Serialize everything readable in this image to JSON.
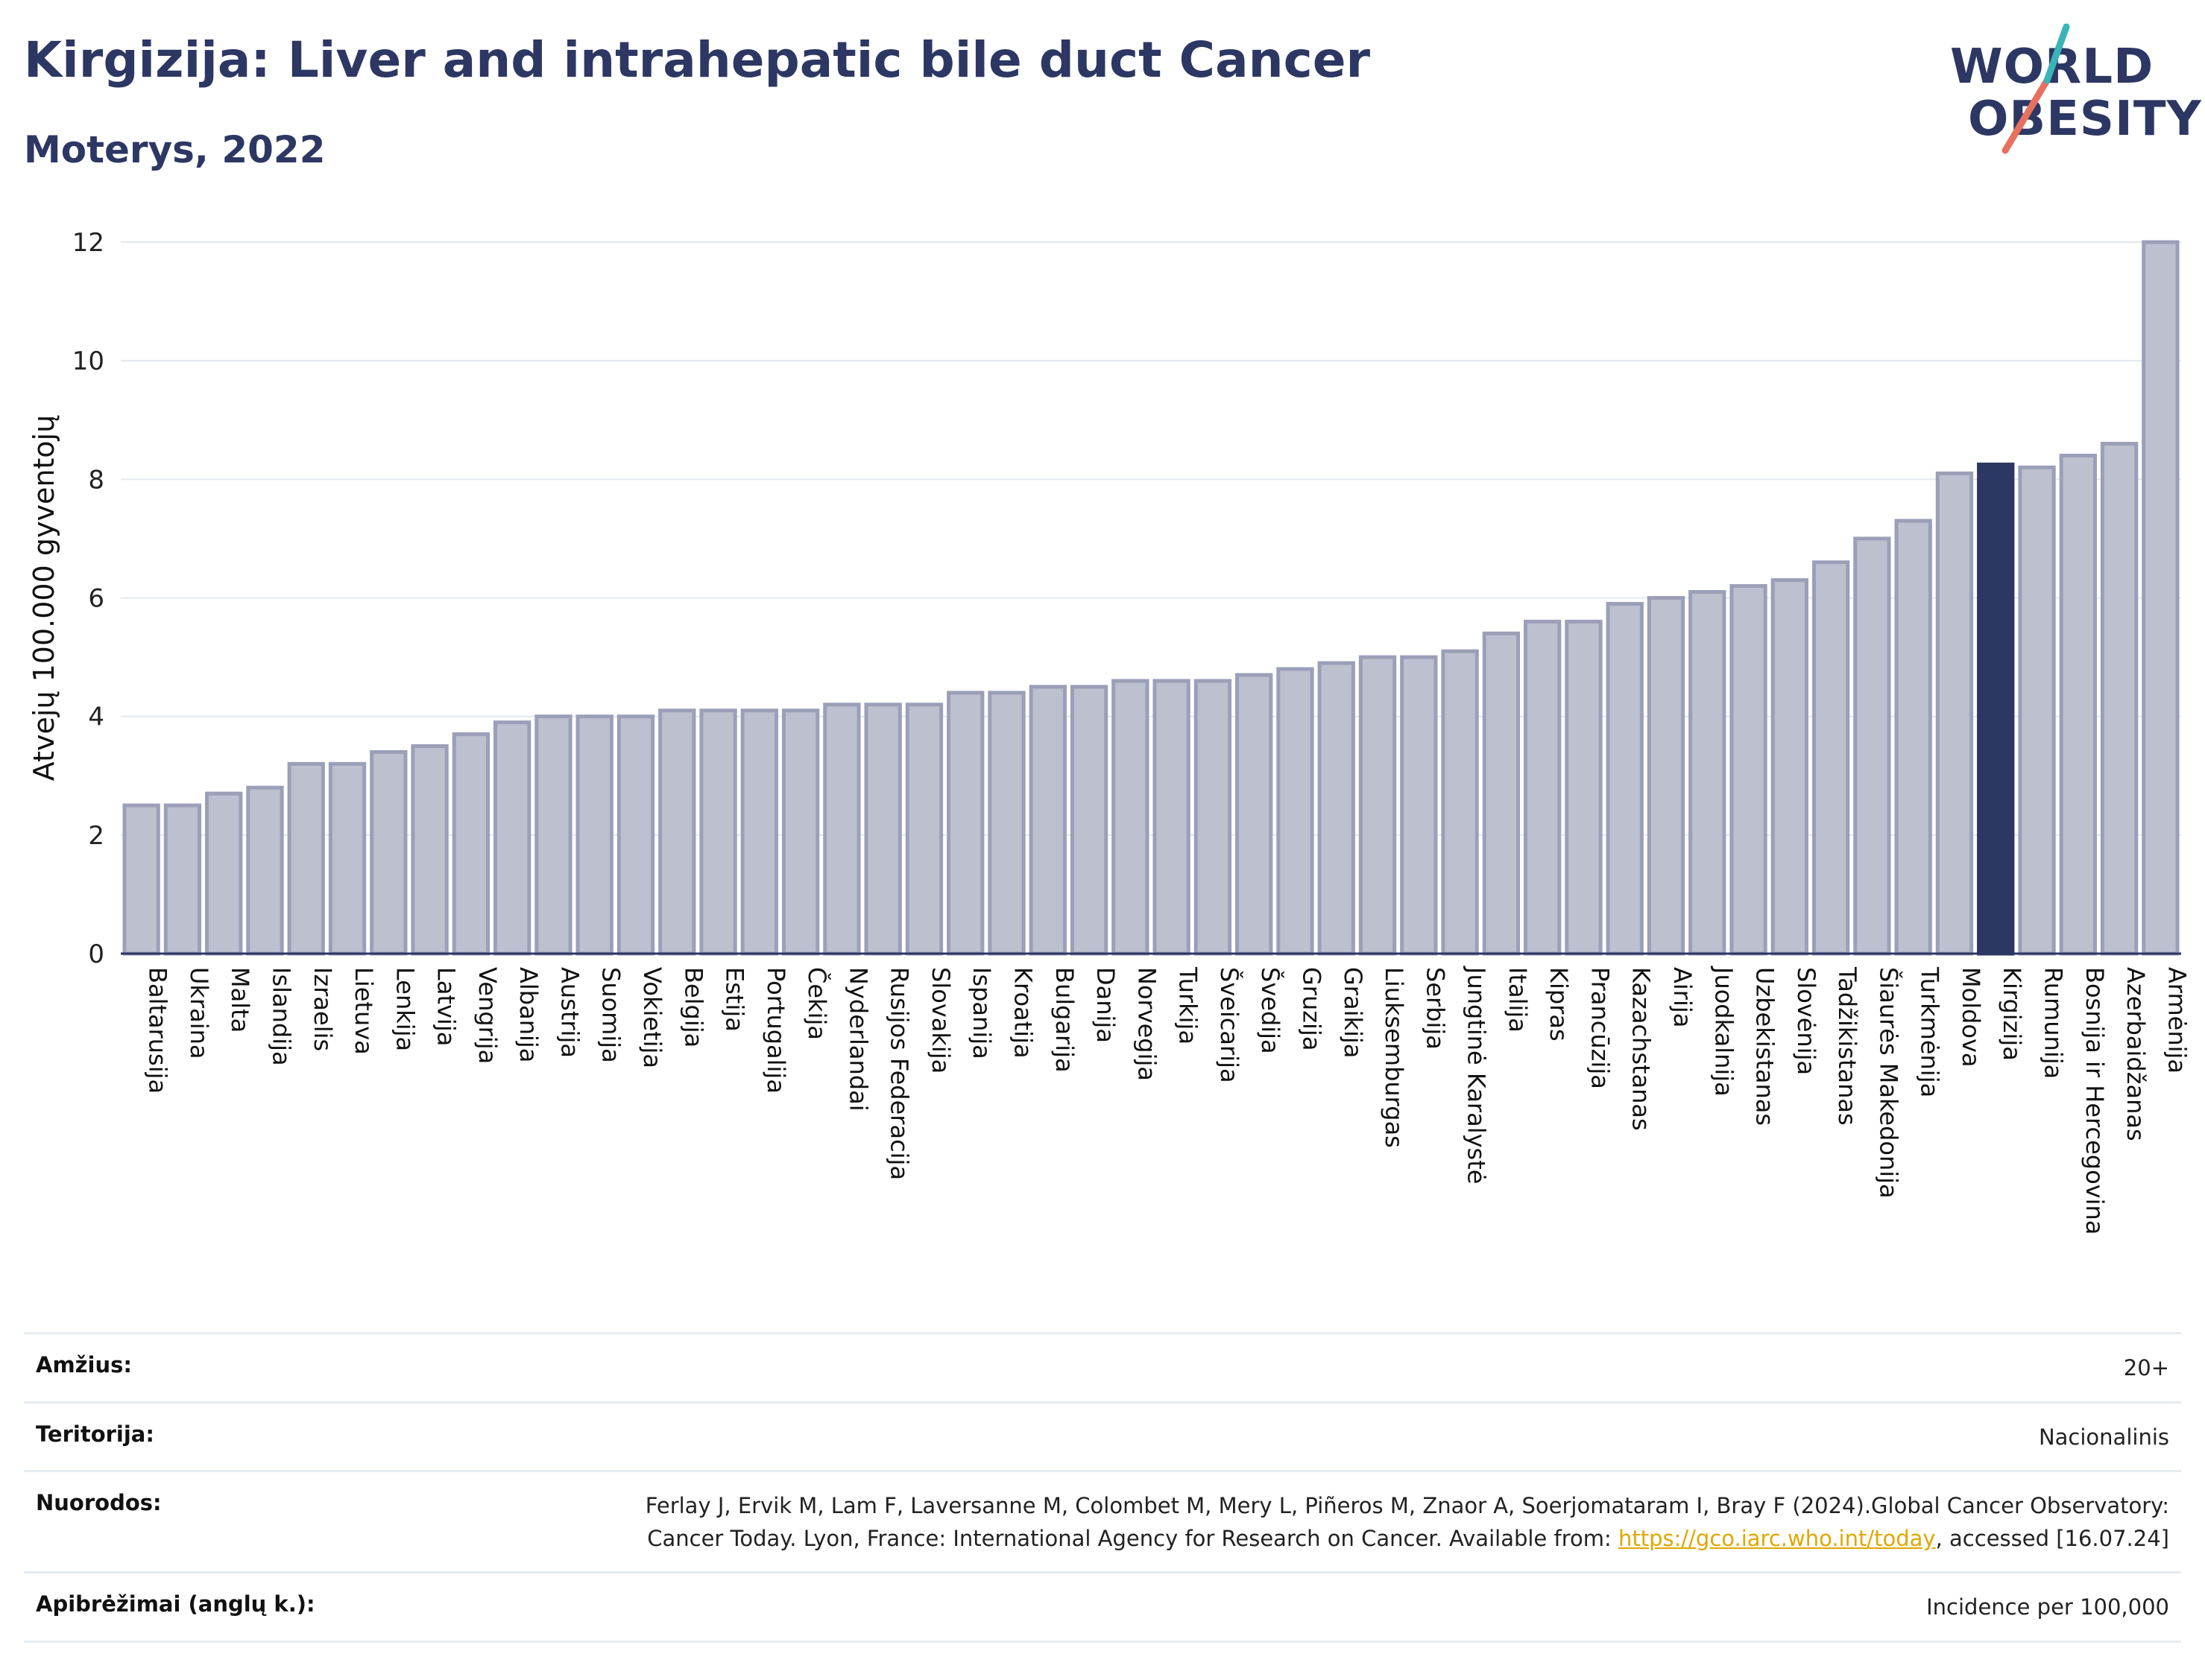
{
  "header": {
    "title": "Kirgizija: Liver and intrahepatic bile duct Cancer",
    "subtitle": "Moterys, 2022"
  },
  "logo": {
    "line1": "WORLD",
    "line2": "OBESITY"
  },
  "colors": {
    "bar": "#bcc0cf",
    "bar_border": "#9b9fb8",
    "highlight": "#2d3763",
    "grid": "#e3e8ef",
    "axis": "#2d3763"
  },
  "chart_data": {
    "type": "bar",
    "title": "",
    "xlabel": "",
    "ylabel": "Atvejų 100.000 gyventojų",
    "ylim": [
      0,
      12
    ],
    "yticks": [
      0,
      2,
      4,
      6,
      8,
      10,
      12
    ],
    "highlight": "Kirgizija",
    "categories": [
      "Baltarusija",
      "Ukraina",
      "Malta",
      "Islandija",
      "Izraelis",
      "Lietuva",
      "Lenkija",
      "Latvija",
      "Vengrija",
      "Albanija",
      "Austrija",
      "Suomija",
      "Vokietija",
      "Belgija",
      "Estija",
      "Portugalija",
      "Čekija",
      "Nyderlandai",
      "Rusijos Federacija",
      "Slovakija",
      "Ispanija",
      "Kroatija",
      "Bulgarija",
      "Danija",
      "Norvegija",
      "Turkija",
      "Šveicarija",
      "Švedija",
      "Gruzija",
      "Graikija",
      "Liuksemburgas",
      "Serbija",
      "Jungtinė Karalystė",
      "Italija",
      "Kipras",
      "Prancūzija",
      "Kazachstanas",
      "Airija",
      "Juodkalnija",
      "Uzbekistanas",
      "Slovėnija",
      "Tadžikistanas",
      "Šiaurės Makedonija",
      "Turkmėnija",
      "Moldova",
      "Kirgizija",
      "Rumunija",
      "Bosnija ir Hercegovina",
      "Azerbaidžanas",
      "Armėnija"
    ],
    "values": [
      2.5,
      2.5,
      2.7,
      2.8,
      3.2,
      3.2,
      3.4,
      3.5,
      3.7,
      3.9,
      4.0,
      4.0,
      4.0,
      4.1,
      4.1,
      4.1,
      4.1,
      4.2,
      4.2,
      4.2,
      4.4,
      4.4,
      4.5,
      4.5,
      4.6,
      4.6,
      4.6,
      4.7,
      4.8,
      4.9,
      5.0,
      5.0,
      5.1,
      5.4,
      5.6,
      5.6,
      5.9,
      6.0,
      6.1,
      6.2,
      6.3,
      6.6,
      7.0,
      7.3,
      8.1,
      8.25,
      8.2,
      8.4,
      8.6,
      12.0
    ]
  },
  "footer": {
    "rows": [
      {
        "key": "Amžius:",
        "value": "20+"
      },
      {
        "key": "Teritorija:",
        "value": "Nacionalinis"
      },
      {
        "key": "Nuorodos:",
        "value": "Ferlay J, Ervik M, Lam F, Laversanne M, Colombet M, Mery L, Piñeros M, Znaor A, Soerjomataram I, Bray F (2024).Global Cancer Observatory: Cancer Today. Lyon, France: International Agency for Research on Cancer. Available from: ",
        "link": "https://gco.iarc.who.int/today",
        "suffix": ", accessed [16.07.24]"
      },
      {
        "key": "Apibrėžimai (anglų k.):",
        "value": "Incidence per 100,000"
      }
    ]
  }
}
